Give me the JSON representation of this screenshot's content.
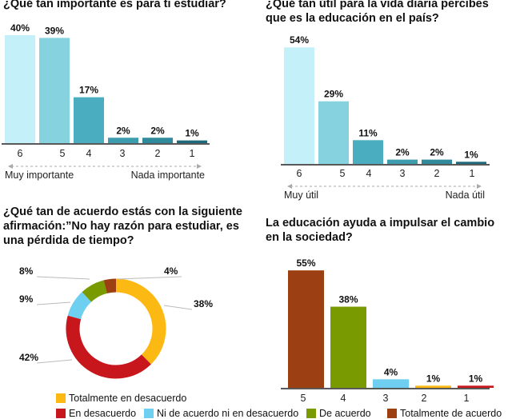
{
  "chart_data": [
    {
      "type": "bar",
      "title": "¿Qué tan importante es para ti estudiar?",
      "categories": [
        "6",
        "5",
        "4",
        "3",
        "2",
        "1"
      ],
      "values": [
        40,
        39,
        17,
        2,
        2,
        1
      ],
      "value_labels": [
        "40%",
        "39%",
        "17%",
        "2%",
        "2%",
        "1%"
      ],
      "scale_left": "Muy importante",
      "scale_right": "Nada  importante",
      "colors": [
        "#c4f1f9",
        "#86d2df",
        "#4aaec0",
        "#3d9cae",
        "#2f8a9b",
        "#1f6a7a"
      ]
    },
    {
      "type": "bar",
      "title": "¿Qué tan útil para la vida diaria percibes que es la educación en el país?",
      "categories": [
        "6",
        "5",
        "4",
        "3",
        "2",
        "1"
      ],
      "values": [
        54,
        29,
        11,
        2,
        2,
        1
      ],
      "value_labels": [
        "54%",
        "29%",
        "11%",
        "2%",
        "2%",
        "1%"
      ],
      "scale_left": "Muy útil",
      "scale_right": "Nada  útil",
      "colors": [
        "#c4f1f9",
        "#86d2df",
        "#4aaec0",
        "#3d9cae",
        "#2f8a9b",
        "#1f6a7a"
      ]
    },
    {
      "type": "pie",
      "title": "¿Qué tan de acuerdo estás con la siguiente afirmación:”No hay razón para estudiar, es una pérdida de tiempo?",
      "categories": [
        "Totalmente en desacuerdo",
        "En desacuerdo",
        "Ni de acuerdo ni en desacuerdo",
        "De acuerdo",
        "Totalmente de acuerdo"
      ],
      "values": [
        38,
        42,
        9,
        8,
        4
      ],
      "value_labels": [
        "38%",
        "42%",
        "9%",
        "8%",
        "4%"
      ],
      "colors": [
        "#fdb913",
        "#c8161d",
        "#6ecff0",
        "#7a9a01",
        "#9c3f12"
      ],
      "legend": "bottom"
    },
    {
      "type": "bar",
      "title": "La educación ayuda a impulsar el cambio en la sociedad?",
      "categories": [
        "5",
        "4",
        "3",
        "2",
        "1"
      ],
      "values": [
        55,
        38,
        4,
        1,
        1
      ],
      "value_labels": [
        "55%",
        "38%",
        "4%",
        "1%",
        "1%"
      ],
      "colors": [
        "#9c3f12",
        "#7a9a01",
        "#6ecff0",
        "#fdb913",
        "#c8161d"
      ]
    }
  ]
}
